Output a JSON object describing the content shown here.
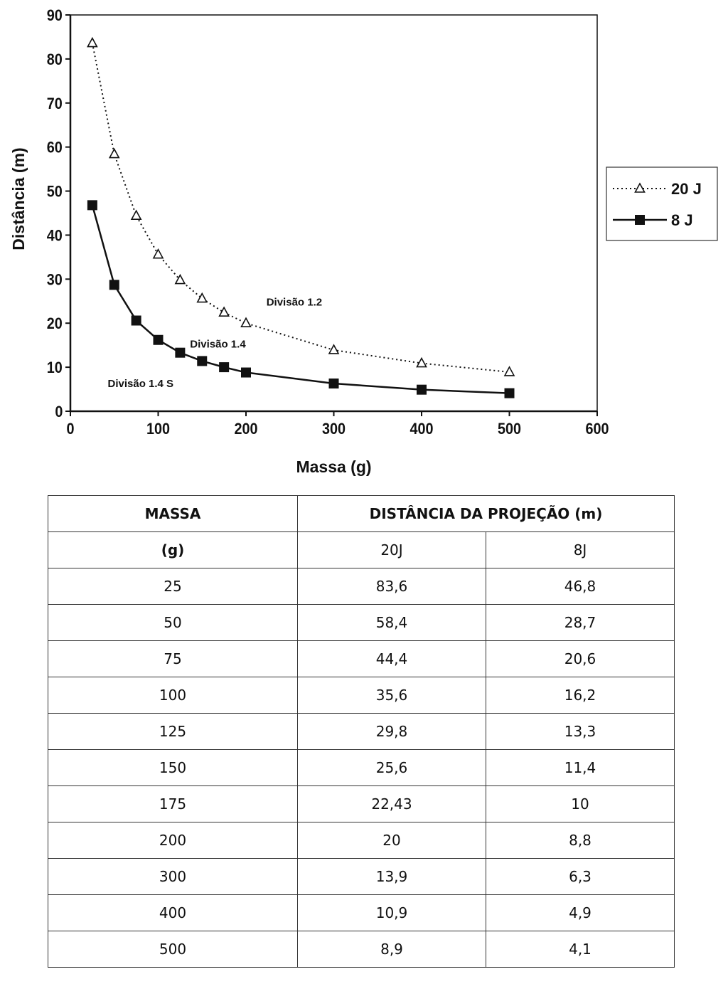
{
  "chart_data": {
    "type": "line",
    "xlabel": "Massa (g)",
    "ylabel": "Distância (m)",
    "xlim": [
      0,
      600
    ],
    "ylim": [
      0,
      90
    ],
    "xticks": [
      0,
      100,
      200,
      300,
      400,
      500,
      600
    ],
    "yticks": [
      0,
      10,
      20,
      30,
      40,
      50,
      60,
      70,
      80,
      90
    ],
    "grid": false,
    "legend": "right",
    "x": [
      25,
      50,
      75,
      100,
      125,
      150,
      175,
      200,
      300,
      400,
      500
    ],
    "series": [
      {
        "name": "20 J",
        "marker": "triangle-open",
        "line": "dotted",
        "values": [
          83.6,
          58.4,
          44.4,
          35.6,
          29.8,
          25.6,
          22.43,
          20,
          13.9,
          10.9,
          8.9
        ]
      },
      {
        "name": "8 J",
        "marker": "square-filled",
        "line": "solid",
        "values": [
          46.8,
          28.7,
          20.6,
          16.2,
          13.3,
          11.4,
          10,
          8.8,
          6.3,
          4.9,
          4.1
        ]
      }
    ],
    "annotations": [
      {
        "text": "Divisão 1.2",
        "x": 255,
        "y": 24
      },
      {
        "text": "Divisão 1.4",
        "x": 168,
        "y": 14.5
      },
      {
        "text": "Divisão 1.4 S",
        "x": 80,
        "y": 5.5
      }
    ]
  },
  "table": {
    "header_mass": "MASSA",
    "header_distance": "DISTÂNCIA DA PROJEÇÃO (m)",
    "unit_mass": "(g)",
    "col_20j": "20J",
    "col_8j": "8J",
    "rows": [
      [
        "25",
        "83,6",
        "46,8"
      ],
      [
        "50",
        "58,4",
        "28,7"
      ],
      [
        "75",
        "44,4",
        "20,6"
      ],
      [
        "100",
        "35,6",
        "16,2"
      ],
      [
        "125",
        "29,8",
        "13,3"
      ],
      [
        "150",
        "25,6",
        "11,4"
      ],
      [
        "175",
        "22,43",
        "10"
      ],
      [
        "200",
        "20",
        "8,8"
      ],
      [
        "300",
        "13,9",
        "6,3"
      ],
      [
        "400",
        "10,9",
        "4,9"
      ],
      [
        "500",
        "8,9",
        "4,1"
      ]
    ]
  }
}
